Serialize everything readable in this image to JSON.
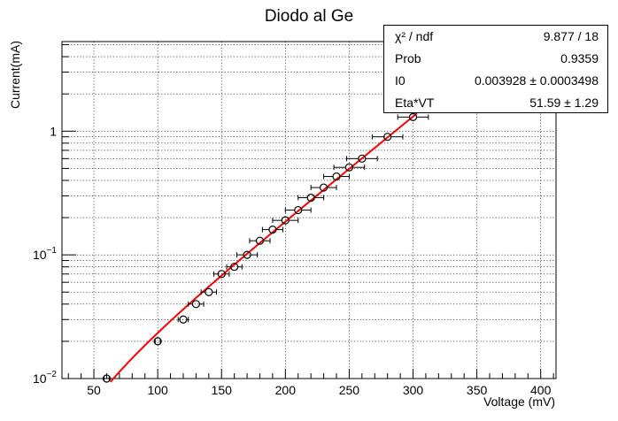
{
  "chart_data": {
    "type": "scatter",
    "title": "Diodo al Ge",
    "xlabel": "Voltage (mV)",
    "ylabel": "Current(mA)",
    "xlim": [
      25,
      412
    ],
    "ylim": [
      0.01,
      5.3
    ],
    "yscale": "log",
    "grid": true,
    "x_ticks": [
      50,
      100,
      150,
      200,
      250,
      300,
      350,
      400
    ],
    "y_ticks": [
      {
        "value": 0.01,
        "base": "10",
        "exp": "−2"
      },
      {
        "value": 0.1,
        "base": "10",
        "exp": "−1"
      },
      {
        "value": 1,
        "base": "1",
        "exp": ""
      }
    ],
    "points": [
      {
        "x": 60,
        "y": 0.01,
        "xerr": 2
      },
      {
        "x": 100,
        "y": 0.02,
        "xerr": 2
      },
      {
        "x": 120,
        "y": 0.03,
        "xerr": 4
      },
      {
        "x": 130,
        "y": 0.04,
        "xerr": 6
      },
      {
        "x": 140,
        "y": 0.05,
        "xerr": 6
      },
      {
        "x": 150,
        "y": 0.07,
        "xerr": 6
      },
      {
        "x": 160,
        "y": 0.08,
        "xerr": 6
      },
      {
        "x": 170,
        "y": 0.1,
        "xerr": 8
      },
      {
        "x": 180,
        "y": 0.13,
        "xerr": 8
      },
      {
        "x": 190,
        "y": 0.16,
        "xerr": 8
      },
      {
        "x": 200,
        "y": 0.19,
        "xerr": 10
      },
      {
        "x": 210,
        "y": 0.23,
        "xerr": 10
      },
      {
        "x": 220,
        "y": 0.29,
        "xerr": 10
      },
      {
        "x": 230,
        "y": 0.35,
        "xerr": 10
      },
      {
        "x": 240,
        "y": 0.43,
        "xerr": 10
      },
      {
        "x": 250,
        "y": 0.51,
        "xerr": 12
      },
      {
        "x": 260,
        "y": 0.6,
        "xerr": 12
      },
      {
        "x": 280,
        "y": 0.9,
        "xerr": 12
      },
      {
        "x": 300,
        "y": 1.3,
        "xerr": 12
      }
    ],
    "fit": {
      "function": "I0*(exp(V/EtaVT)-1)",
      "I0": 0.003928,
      "EtaVT": 51.59,
      "x_range": [
        63,
        303
      ],
      "color": "#ff0000"
    },
    "stats": [
      {
        "label": "χ² / ndf",
        "value": "9.877 / 18"
      },
      {
        "label": "Prob",
        "value": "0.9359"
      },
      {
        "label": "I0",
        "value": "0.003928 ± 0.0003498"
      },
      {
        "label": "Eta*VT",
        "value": "51.59 ±  1.29"
      }
    ]
  }
}
